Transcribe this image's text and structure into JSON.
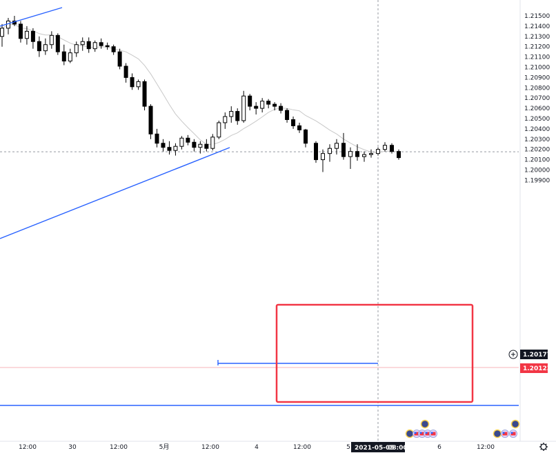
{
  "chart_data": {
    "type": "candlestick",
    "price_axis": {
      "range": [
        1.1985,
        1.216
      ],
      "ticks": [
        "1.21500",
        "1.21400",
        "1.21300",
        "1.21200",
        "1.21100",
        "1.21000",
        "1.20900",
        "1.20800",
        "1.20700",
        "1.20600",
        "1.20500",
        "1.20400",
        "1.20300",
        "1.20200",
        "1.20100",
        "1.20000",
        "1.19900"
      ]
    },
    "time_axis": {
      "ticks": [
        "12:00",
        "30",
        "12:00",
        "5月",
        "12:00",
        "4",
        "12:00",
        "5",
        "6",
        "12:00"
      ],
      "crosshair_label": "2021-05-05",
      "crosshair_time": "08:00"
    },
    "current_price_tag": "1.20177",
    "close_line_tag": "1.20123",
    "colors": {
      "up": "#ffffff",
      "down": "#000000",
      "trendline": "#2962ff",
      "box": "#f23645",
      "ma": "#c8c8c8",
      "crosshair": "#9598a1",
      "price_tag": "#131722",
      "close_tag": "#f23645"
    },
    "candles": [
      [
        1.213,
        1.2142,
        1.212,
        1.2138
      ],
      [
        1.2138,
        1.2148,
        1.2132,
        1.2145
      ],
      [
        1.2145,
        1.215,
        1.214,
        1.2142
      ],
      [
        1.2142,
        1.2145,
        1.2124,
        1.2128
      ],
      [
        1.2128,
        1.214,
        1.2122,
        1.2135
      ],
      [
        1.2135,
        1.2138,
        1.2118,
        1.2125
      ],
      [
        1.2125,
        1.213,
        1.211,
        1.2116
      ],
      [
        1.2116,
        1.2128,
        1.2112,
        1.2122
      ],
      [
        1.2122,
        1.2135,
        1.2118,
        1.2131
      ],
      [
        1.2131,
        1.2133,
        1.2112,
        1.2115
      ],
      [
        1.2115,
        1.2122,
        1.2102,
        1.2106
      ],
      [
        1.2106,
        1.2118,
        1.2104,
        1.2114
      ],
      [
        1.2114,
        1.2125,
        1.211,
        1.2122
      ],
      [
        1.2122,
        1.2129,
        1.2116,
        1.2125
      ],
      [
        1.2125,
        1.2129,
        1.2114,
        1.2118
      ],
      [
        1.2118,
        1.2126,
        1.2115,
        1.2124
      ],
      [
        1.2124,
        1.2128,
        1.2118,
        1.2121
      ],
      [
        1.2121,
        1.2124,
        1.2117,
        1.212
      ],
      [
        1.212,
        1.2122,
        1.2112,
        1.2115
      ],
      [
        1.2115,
        1.2118,
        1.2098,
        1.2101
      ],
      [
        1.2101,
        1.2104,
        1.2085,
        1.209
      ],
      [
        1.209,
        1.2094,
        1.2078,
        1.2081
      ],
      [
        1.2081,
        1.2088,
        1.2078,
        1.2086
      ],
      [
        1.2086,
        1.2088,
        1.2058,
        1.2062
      ],
      [
        1.2062,
        1.2064,
        1.203,
        1.2035
      ],
      [
        1.2035,
        1.204,
        1.2022,
        1.2026
      ],
      [
        1.2026,
        1.203,
        1.2018,
        1.2022
      ],
      [
        1.2022,
        1.2028,
        1.2015,
        1.2019
      ],
      [
        1.2019,
        1.2026,
        1.2014,
        1.2023
      ],
      [
        1.2023,
        1.2033,
        1.202,
        1.2031
      ],
      [
        1.2031,
        1.2034,
        1.2024,
        1.2027
      ],
      [
        1.2027,
        1.203,
        1.2018,
        1.2022
      ],
      [
        1.2022,
        1.2028,
        1.2016,
        1.2025
      ],
      [
        1.2025,
        1.203,
        1.2018,
        1.2021
      ],
      [
        1.2021,
        1.2035,
        1.2019,
        1.2032
      ],
      [
        1.2032,
        1.2048,
        1.203,
        1.2046
      ],
      [
        1.2046,
        1.2056,
        1.204,
        1.2052
      ],
      [
        1.2052,
        1.2062,
        1.2046,
        1.2057
      ],
      [
        1.2057,
        1.206,
        1.2044,
        1.2048
      ],
      [
        1.2048,
        1.2077,
        1.2046,
        1.2072
      ],
      [
        1.2072,
        1.2074,
        1.2058,
        1.2062
      ],
      [
        1.2062,
        1.2066,
        1.2054,
        1.206
      ],
      [
        1.206,
        1.207,
        1.2056,
        1.2067
      ],
      [
        1.2067,
        1.2069,
        1.206,
        1.2064
      ],
      [
        1.2064,
        1.2066,
        1.2058,
        1.2062
      ],
      [
        1.2062,
        1.2065,
        1.2055,
        1.2058
      ],
      [
        1.2058,
        1.206,
        1.2046,
        1.2049
      ],
      [
        1.2049,
        1.2052,
        1.204,
        1.2043
      ],
      [
        1.2043,
        1.2046,
        1.2036,
        1.2039
      ],
      [
        1.2039,
        1.204,
        1.2022,
        1.2026
      ],
      [
        1.2026,
        1.2028,
        1.2007,
        1.201
      ],
      [
        1.201,
        1.202,
        1.1998,
        1.2016
      ],
      [
        1.2016,
        1.2025,
        1.2008,
        1.2021
      ],
      [
        1.2021,
        1.203,
        1.2015,
        1.2026
      ],
      [
        1.2026,
        1.2036,
        1.201,
        1.2013
      ],
      [
        1.2013,
        1.2022,
        1.2001,
        1.2018
      ],
      [
        1.2018,
        1.2025,
        1.2009,
        1.2013
      ],
      [
        1.2013,
        1.2018,
        1.2008,
        1.2015
      ],
      [
        1.2015,
        1.202,
        1.2012,
        1.2016
      ],
      [
        1.2016,
        1.2022,
        1.2014,
        1.202
      ],
      [
        1.202,
        1.2027,
        1.2018,
        1.2024
      ],
      [
        1.2024,
        1.2026,
        1.2016,
        1.2018
      ],
      [
        1.2018,
        1.202,
        1.201,
        1.2012
      ]
    ],
    "annotations": {
      "rectangle": {
        "top": 1.20365,
        "bottom": 1.19985
      },
      "horizontal_levels": [
        1.19975,
        1.20136
      ],
      "crosshair_price": 1.20177
    }
  }
}
